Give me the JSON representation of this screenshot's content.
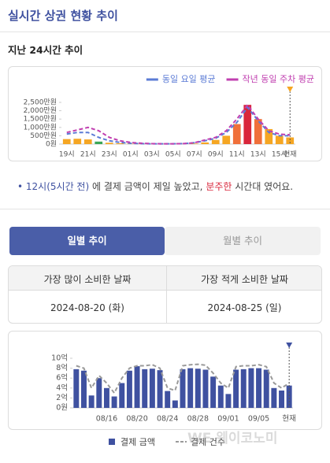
{
  "header": {
    "title": "실시간 상권 현황 추이"
  },
  "insight": {
    "bullet": "•",
    "highlight": "12시(5시간 전)",
    "text1": " 에 결제 금액이 제일 높았고, ",
    "emphasis": "분주한",
    "text2": " 시간대 였어요."
  },
  "tabs": [
    "일별 추이",
    "월별 추이"
  ],
  "summary": {
    "headers": [
      "가장 많이 소비한 날짜",
      "가장 적게 소비한 날짜"
    ],
    "values": [
      "2024-08-20 (화)",
      "2024-08-25 (일)"
    ]
  },
  "watermark": "WE 웨이코노미",
  "chart_data": [
    {
      "type": "bar",
      "title": "지난 24시간 추이",
      "categories": [
        "19시",
        null,
        "21시",
        null,
        "23시",
        null,
        "01시",
        null,
        "03시",
        null,
        "05시",
        null,
        "07시",
        null,
        "09시",
        null,
        "11시",
        null,
        "13시",
        null,
        "15시",
        "현재"
      ],
      "series": [
        {
          "type": "bar",
          "colors": [
            "#f5a623",
            "#f5a623",
            "#f5a623",
            "#3aa757",
            "#f5a623",
            "#f5a623",
            "#f5a623",
            "#f5a623",
            "#f5a623",
            "#f5a623",
            "#f5a623",
            "#f5a623",
            "#f5a623",
            "#f5a623",
            "#f5a623",
            "#f5a623",
            "#f0703a",
            "#d9263b",
            "#f0703a",
            "#f5a623",
            "#f5a623",
            "#f5a623"
          ],
          "values": [
            300,
            320,
            280,
            150,
            80,
            50,
            20,
            20,
            20,
            20,
            20,
            20,
            30,
            100,
            250,
            500,
            1200,
            2350,
            1500,
            900,
            500,
            400
          ]
        },
        {
          "type": "line",
          "name": "동일 요일 평균",
          "color": "#5b7bd5",
          "values": [
            600,
            700,
            700,
            400,
            200,
            100,
            50,
            30,
            20,
            20,
            20,
            30,
            80,
            200,
            350,
            700,
            1300,
            2200,
            1400,
            700,
            500,
            500
          ]
        },
        {
          "type": "line",
          "name": "작년 동일 주차 평균",
          "color": "#c03fb0",
          "values": [
            700,
            850,
            1000,
            800,
            400,
            200,
            100,
            50,
            30,
            20,
            20,
            30,
            80,
            250,
            400,
            800,
            1500,
            2350,
            1500,
            800,
            600,
            550
          ]
        }
      ],
      "ylim": [
        0,
        2500
      ],
      "yticks": [
        {
          "value": 0,
          "label": "0원"
        },
        {
          "value": 500,
          "label": "500만원"
        },
        {
          "value": 1000,
          "label": "1,000만원"
        },
        {
          "value": 1500,
          "label": "1,500만원"
        },
        {
          "value": 2000,
          "label": "2,000만원"
        },
        {
          "value": 2500,
          "label": "2,500만원"
        }
      ],
      "legend": "top-right",
      "marker_color": "#f5a623"
    },
    {
      "type": "bar",
      "categories": [
        null,
        null,
        null,
        null,
        "08/16",
        null,
        null,
        null,
        "08/20",
        null,
        null,
        null,
        "08/24",
        null,
        null,
        null,
        "08/28",
        null,
        null,
        null,
        "09/01",
        null,
        null,
        null,
        "09/05",
        null,
        null,
        null,
        "현재"
      ],
      "series": [
        {
          "type": "bar",
          "name": "결제 금액",
          "color": "#3f51a0",
          "values": [
            7.8,
            7.5,
            2.5,
            6,
            4,
            2.3,
            5,
            7.5,
            8.4,
            7.8,
            7.9,
            7.6,
            3.4,
            1.5,
            7.8,
            8,
            7.9,
            7.7,
            6.3,
            4.5,
            2.8,
            7.7,
            7.8,
            8,
            8,
            7.7,
            4,
            3.5,
            4.5
          ]
        },
        {
          "type": "line",
          "name": "결제 건수",
          "color": "#9a9a9a",
          "values": [
            8.5,
            8,
            4,
            6.5,
            5,
            3,
            6,
            8,
            8.5,
            8.5,
            8.7,
            8,
            4,
            3.5,
            8.5,
            8.7,
            8.8,
            8.6,
            7,
            5,
            4,
            8.3,
            8.5,
            8.5,
            8.7,
            8.3,
            5,
            4,
            5
          ]
        }
      ],
      "ylim": [
        0,
        10
      ],
      "yticks": [
        {
          "value": 0,
          "label": "0원"
        },
        {
          "value": 2,
          "label": "2억"
        },
        {
          "value": 4,
          "label": "4억"
        },
        {
          "value": 6,
          "label": "6억"
        },
        {
          "value": 8,
          "label": "8억"
        },
        {
          "value": 10,
          "label": "10억"
        }
      ],
      "legend": "bottom",
      "marker_color": "#3f51a0"
    }
  ]
}
